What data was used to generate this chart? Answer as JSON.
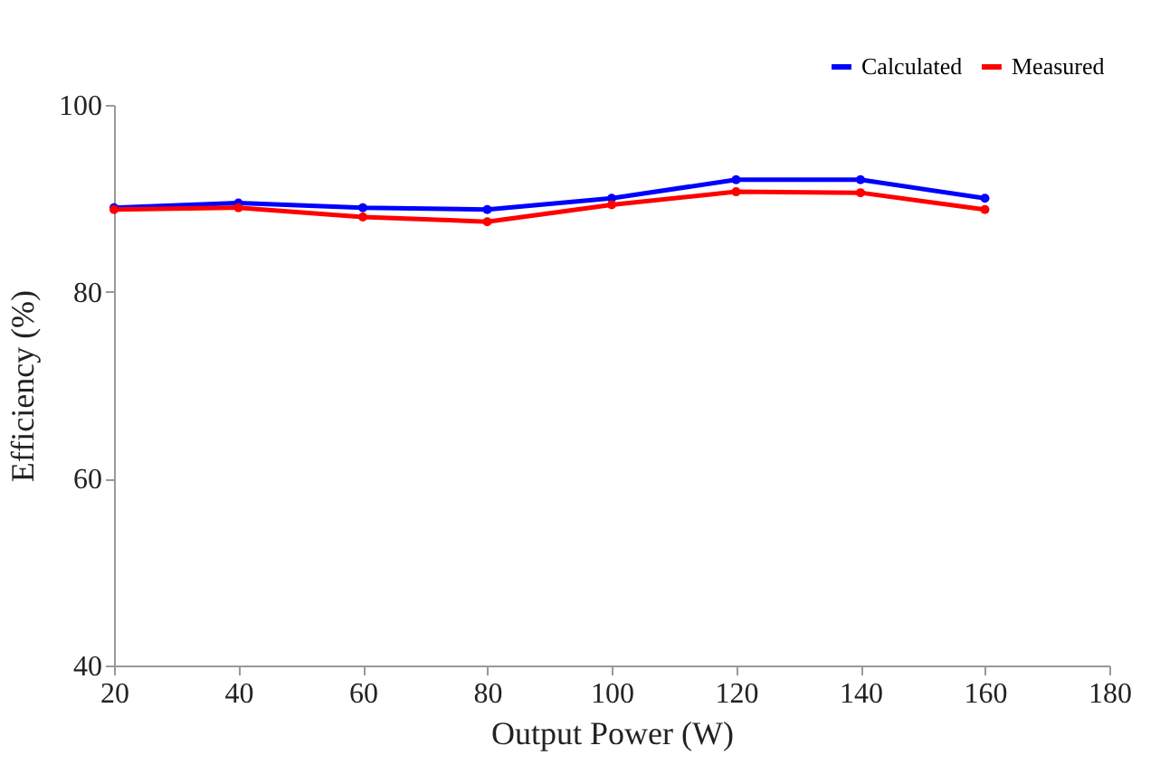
{
  "chart_data": {
    "type": "line",
    "xlabel": "Output Power (W)",
    "ylabel": "Efficiency (%)",
    "x": [
      20,
      40,
      60,
      80,
      100,
      120,
      140,
      160
    ],
    "series": [
      {
        "name": "Calculated",
        "color": "#0000ff",
        "values": [
          89,
          89.5,
          89,
          88.8,
          90,
          92,
          92,
          90
        ]
      },
      {
        "name": "Measured",
        "color": "#ff0000",
        "values": [
          88.8,
          89,
          88,
          87.5,
          89.3,
          90.7,
          90.6,
          88.8
        ]
      }
    ],
    "xlim": [
      20,
      180
    ],
    "xticks": [
      20,
      40,
      60,
      80,
      100,
      120,
      140,
      160,
      180
    ],
    "ylim": [
      40,
      100
    ],
    "yticks": [
      40,
      60,
      80,
      100
    ],
    "grid": false,
    "legend": "top right",
    "marker": "circle",
    "line_style": "solid"
  }
}
